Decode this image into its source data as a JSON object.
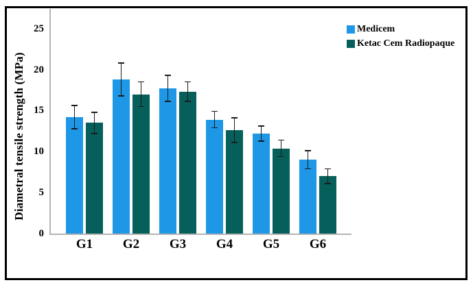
{
  "chart_data": {
    "type": "bar",
    "title": "",
    "categories": [
      "G1",
      "G2",
      "G3",
      "G4",
      "G5",
      "G6"
    ],
    "series": [
      {
        "name": "Medicem",
        "color": "#1E97E6",
        "values": [
          14.2,
          18.8,
          17.7,
          13.9,
          12.2,
          9.0
        ],
        "errors": [
          1.4,
          2.0,
          1.6,
          1.0,
          0.9,
          1.1
        ]
      },
      {
        "name": "Ketac Cem Radiopaque",
        "color": "#065F5A",
        "values": [
          13.5,
          17.0,
          17.3,
          12.6,
          10.4,
          7.0
        ],
        "errors": [
          1.3,
          1.5,
          1.2,
          1.5,
          1.0,
          0.9
        ]
      }
    ],
    "xlabel": "",
    "ylabel": "Diametral tensile strength (MPa)",
    "yticks": [
      0,
      5,
      10,
      15,
      20,
      25
    ],
    "ylim": [
      0,
      27.4
    ],
    "grid": false,
    "error_bars": true,
    "legend_position": "top-right",
    "axis_color": "#b3b3b3",
    "error_bar_color": "#1a1a1a",
    "border_color": "#000000"
  }
}
